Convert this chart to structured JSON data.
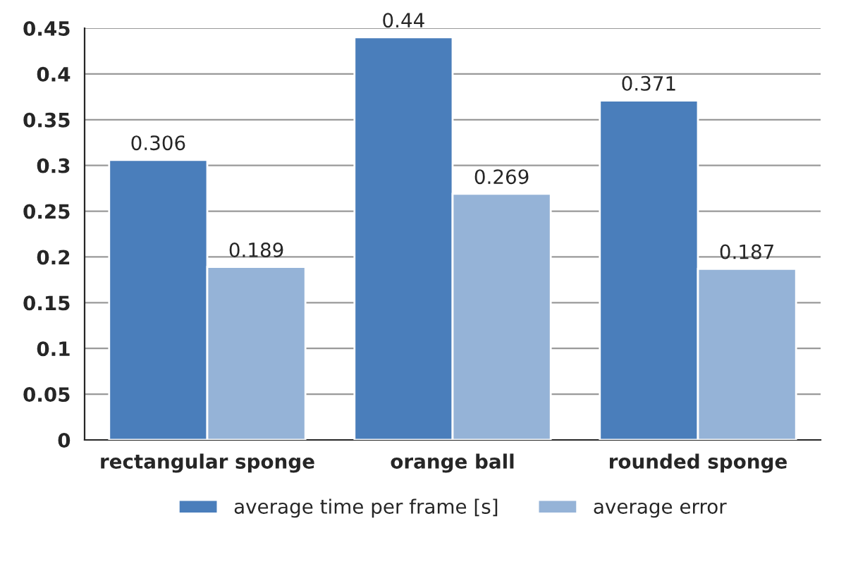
{
  "chart_data": {
    "type": "bar",
    "categories": [
      "rectangular sponge",
      "orange ball",
      "rounded sponge"
    ],
    "series": [
      {
        "name": "average time per frame [s]",
        "color": "#4a7ebb",
        "values": [
          0.306,
          0.44,
          0.371
        ]
      },
      {
        "name": "average error",
        "color": "#95b3d7",
        "values": [
          0.189,
          0.269,
          0.187
        ]
      }
    ],
    "ylim": [
      0,
      0.45
    ],
    "yticks": [
      0,
      0.05,
      0.1,
      0.15,
      0.2,
      0.25,
      0.3,
      0.35,
      0.4,
      0.45
    ],
    "grid": "y",
    "legend": "bottom",
    "data_labels": true
  }
}
